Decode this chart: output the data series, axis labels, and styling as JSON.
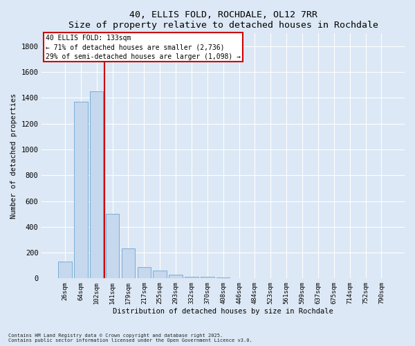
{
  "title": "40, ELLIS FOLD, ROCHDALE, OL12 7RR",
  "subtitle": "Size of property relative to detached houses in Rochdale",
  "xlabel": "Distribution of detached houses by size in Rochdale",
  "ylabel": "Number of detached properties",
  "categories": [
    "26sqm",
    "64sqm",
    "102sqm",
    "141sqm",
    "179sqm",
    "217sqm",
    "255sqm",
    "293sqm",
    "332sqm",
    "370sqm",
    "408sqm",
    "446sqm",
    "484sqm",
    "523sqm",
    "561sqm",
    "599sqm",
    "637sqm",
    "675sqm",
    "714sqm",
    "752sqm",
    "790sqm"
  ],
  "values": [
    130,
    1370,
    1450,
    500,
    230,
    90,
    60,
    30,
    15,
    10,
    5,
    3,
    2,
    2,
    1,
    1,
    1,
    1,
    1,
    1,
    1
  ],
  "bar_color": "#c5d8ee",
  "bar_edge_color": "#7aadd4",
  "fig_background_color": "#dce8f5",
  "ax_background_color": "#dce8f5",
  "grid_color": "#ffffff",
  "red_line_x": 2.5,
  "annotation_text": "40 ELLIS FOLD: 133sqm\n← 71% of detached houses are smaller (2,736)\n29% of semi-detached houses are larger (1,098) →",
  "annotation_box_facecolor": "#ffffff",
  "annotation_box_edgecolor": "#cc0000",
  "ylim": [
    0,
    1900
  ],
  "yticks": [
    0,
    200,
    400,
    600,
    800,
    1000,
    1200,
    1400,
    1600,
    1800
  ],
  "footer1": "Contains HM Land Registry data © Crown copyright and database right 2025.",
  "footer2": "Contains public sector information licensed under the Open Government Licence v3.0."
}
